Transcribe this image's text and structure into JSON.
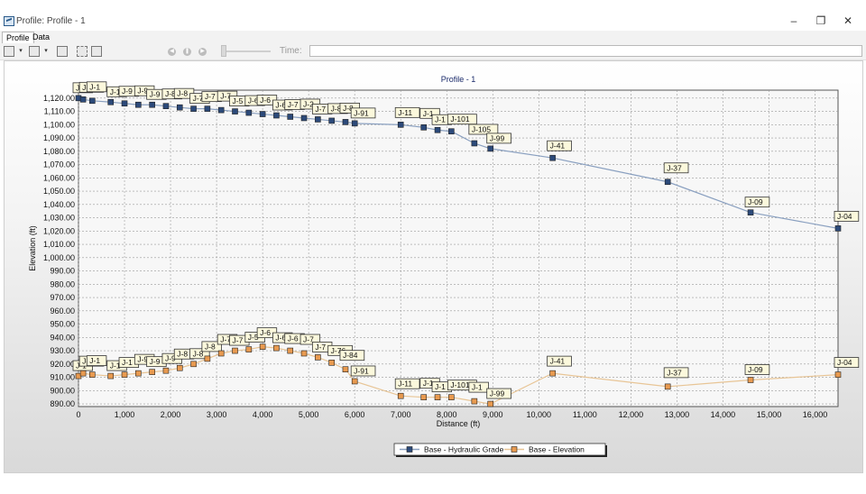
{
  "window": {
    "title": "Profile: Profile - 1",
    "buttons": {
      "minimize": "–",
      "restore": "❐",
      "close": "✕"
    }
  },
  "tabs": [
    {
      "label": "Profile"
    },
    {
      "label": "Data"
    }
  ],
  "toolbar": {
    "time_label": "Time:",
    "time_value": ""
  },
  "chart_data": {
    "type": "line",
    "title": "Profile - 1",
    "xlabel": "Distance (ft)",
    "ylabel": "Elevation (ft)",
    "xlim": [
      0,
      16500
    ],
    "ylim": [
      888,
      1126
    ],
    "x_ticks": [
      0,
      1000,
      2000,
      3000,
      4000,
      5000,
      6000,
      7000,
      8000,
      9000,
      10000,
      11000,
      12000,
      13000,
      14000,
      15000,
      16000
    ],
    "x_tick_labels": [
      "0",
      "1,000",
      "2,000",
      "3,000",
      "4,000",
      "5,000",
      "6,000",
      "7,000",
      "8,000",
      "9,000",
      "10,000",
      "11,000",
      "12,000",
      "13,000",
      "14,000",
      "15,000",
      "16,000"
    ],
    "y_ticks": [
      890,
      900,
      910,
      920,
      930,
      940,
      950,
      960,
      970,
      980,
      990,
      1000,
      1010,
      1020,
      1030,
      1040,
      1050,
      1060,
      1070,
      1080,
      1090,
      1100,
      1110,
      1120
    ],
    "y_tick_labels": [
      "890.00",
      "900.00",
      "910.00",
      "920.00",
      "930.00",
      "940.00",
      "950.00",
      "960.00",
      "970.00",
      "980.00",
      "990.00",
      "1,000.00",
      "1,010.00",
      "1,020.00",
      "1,030.00",
      "1,040.00",
      "1,050.00",
      "1,060.00",
      "1,070.00",
      "1,080.00",
      "1,090.00",
      "1,100.00",
      "1,110.00",
      "1,120.00"
    ],
    "grid": true,
    "legend_position": "bottom-center",
    "series": [
      {
        "name": "Base - Hydraulic Grade",
        "color": "#2c4a7a",
        "line_color": "#8aa0c0",
        "x": [
          0,
          100,
          300,
          700,
          1000,
          1300,
          1600,
          1900,
          2200,
          2500,
          2800,
          3100,
          3400,
          3700,
          4000,
          4300,
          4600,
          4900,
          5200,
          5500,
          5800,
          6000,
          7000,
          7500,
          7800,
          8100,
          8600,
          8950,
          10300,
          12800,
          14600,
          16500
        ],
        "y": [
          1120,
          1119,
          1118,
          1117,
          1116,
          1115,
          1115,
          1114,
          1113,
          1112,
          1112,
          1111,
          1110,
          1109,
          1108,
          1107,
          1106,
          1105,
          1104,
          1103,
          1102,
          1101,
          1100,
          1098,
          1096,
          1095,
          1086,
          1082,
          1075,
          1057,
          1034,
          1022
        ]
      },
      {
        "name": "Base - Elevation",
        "color": "#e89a50",
        "line_color": "#e8c596",
        "x": [
          0,
          100,
          300,
          700,
          1000,
          1300,
          1600,
          1900,
          2200,
          2500,
          2800,
          3100,
          3400,
          3700,
          4000,
          4300,
          4600,
          4900,
          5200,
          5500,
          5800,
          6000,
          7000,
          7500,
          7800,
          8100,
          8600,
          8950,
          10300,
          12800,
          14600,
          16500
        ],
        "y": [
          911,
          913,
          912,
          911,
          912,
          913,
          914,
          915,
          917,
          920,
          924,
          928,
          930,
          931,
          933,
          932,
          930,
          928,
          925,
          921,
          916,
          907,
          896,
          895,
          895,
          895,
          892,
          890,
          913,
          903,
          908,
          912
        ]
      }
    ],
    "node_labels_hg": [
      "J-1",
      "J-10",
      "J-1",
      "J-1",
      "J-9",
      "J-9",
      "J-9",
      "J-8",
      "J-8",
      "J-7",
      "J-7",
      "J-7",
      "J-5",
      "J-6",
      "J-6",
      "J-6",
      "J-7",
      "J-2",
      "J-7",
      "J-8",
      "J-8",
      "J-91",
      "J-11",
      "J-1",
      "J-1",
      "J-101",
      "J-105",
      "J-99",
      "J-41",
      "J-37",
      "J-09",
      "J-04"
    ],
    "node_labels_elev": [
      "J-1",
      "J-10",
      "J-1",
      "J-1",
      "J-1",
      "J-9",
      "J-9",
      "J-9",
      "J-8",
      "J-8",
      "J-8",
      "J-7",
      "J-7",
      "J-5",
      "J-6",
      "J-6",
      "J-6",
      "J-7",
      "J-7",
      "J-76",
      "J-84",
      "J-91",
      "J-11",
      "J-1",
      "J-1",
      "J-101",
      "J-1",
      "J-99",
      "J-41",
      "J-37",
      "J-09",
      "J-04"
    ]
  }
}
